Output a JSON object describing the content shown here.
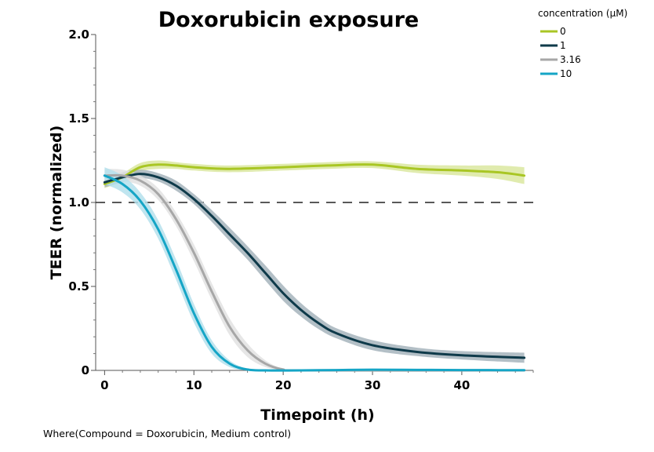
{
  "chart_data": {
    "type": "line",
    "title": "Doxorubicin exposure",
    "xlabel": "Timepoint (h)",
    "ylabel": "TEER (normalized)",
    "xlim": [
      -1,
      48
    ],
    "ylim": [
      0,
      2.0
    ],
    "x_ticks": [
      0,
      10,
      20,
      30,
      40
    ],
    "x_tick_labels": [
      "0",
      "10",
      "20",
      "30",
      "40"
    ],
    "y_ticks": [
      0,
      0.5,
      1.0,
      1.5,
      2.0
    ],
    "y_tick_labels": [
      "0",
      "0.5",
      "1.0",
      "1.5",
      "2.0"
    ],
    "reference_line": {
      "y": 1.0,
      "style": "dashed"
    },
    "legend": {
      "title": "concentration (µM)",
      "placement": "top-right"
    },
    "series": [
      {
        "name": "0",
        "color": "#a9c624",
        "band_color": "#dbe8a0",
        "x": [
          0,
          2,
          4,
          6,
          8,
          10,
          14,
          20,
          25,
          30,
          35,
          40,
          44,
          47
        ],
        "y": [
          1.11,
          1.15,
          1.21,
          1.225,
          1.22,
          1.21,
          1.2,
          1.21,
          1.22,
          1.225,
          1.2,
          1.19,
          1.18,
          1.16
        ],
        "ci": [
          0.025,
          0.025,
          0.025,
          0.025,
          0.02,
          0.02,
          0.02,
          0.02,
          0.02,
          0.02,
          0.025,
          0.03,
          0.04,
          0.05
        ]
      },
      {
        "name": "1",
        "color": "#0e3a4a",
        "band_color": "#a6b4bc",
        "x": [
          0,
          2,
          4,
          6,
          8,
          10,
          12,
          14,
          16,
          18,
          20,
          22,
          24,
          26,
          30,
          35,
          40,
          47
        ],
        "y": [
          1.12,
          1.15,
          1.17,
          1.15,
          1.1,
          1.02,
          0.92,
          0.81,
          0.7,
          0.58,
          0.46,
          0.36,
          0.28,
          0.22,
          0.15,
          0.11,
          0.09,
          0.075
        ],
        "ci": [
          0.03,
          0.03,
          0.025,
          0.025,
          0.03,
          0.03,
          0.035,
          0.04,
          0.04,
          0.045,
          0.045,
          0.04,
          0.035,
          0.03,
          0.03,
          0.025,
          0.025,
          0.03
        ]
      },
      {
        "name": "3.16",
        "color": "#a7a7a7",
        "band_color": "#e2e2e2",
        "x": [
          0,
          2,
          4,
          6,
          8,
          10,
          12,
          14,
          16,
          18,
          20,
          22,
          47
        ],
        "y": [
          1.16,
          1.16,
          1.13,
          1.05,
          0.9,
          0.7,
          0.47,
          0.26,
          0.12,
          0.04,
          0.005,
          0.0,
          0.0
        ],
        "ci": [
          0.04,
          0.035,
          0.03,
          0.035,
          0.04,
          0.05,
          0.05,
          0.05,
          0.04,
          0.02,
          0.005,
          0.0,
          0.0
        ]
      },
      {
        "name": "10",
        "color": "#15a5c6",
        "band_color": "#b5e1ec",
        "x": [
          0,
          2,
          4,
          6,
          8,
          10,
          12,
          14,
          16,
          18,
          22,
          26,
          30,
          35,
          40,
          47
        ],
        "y": [
          1.16,
          1.11,
          1.01,
          0.84,
          0.6,
          0.34,
          0.14,
          0.04,
          0.005,
          0.0,
          0.0,
          0.002,
          0.004,
          0.003,
          0.002,
          0.001
        ],
        "ci": [
          0.05,
          0.05,
          0.05,
          0.055,
          0.06,
          0.055,
          0.04,
          0.02,
          0.005,
          0.0,
          0.0,
          0.0,
          0.0,
          0.0,
          0.0,
          0.0
        ]
      }
    ]
  },
  "footnote": "Where(Compound = Doxorubicin, Medium control)"
}
